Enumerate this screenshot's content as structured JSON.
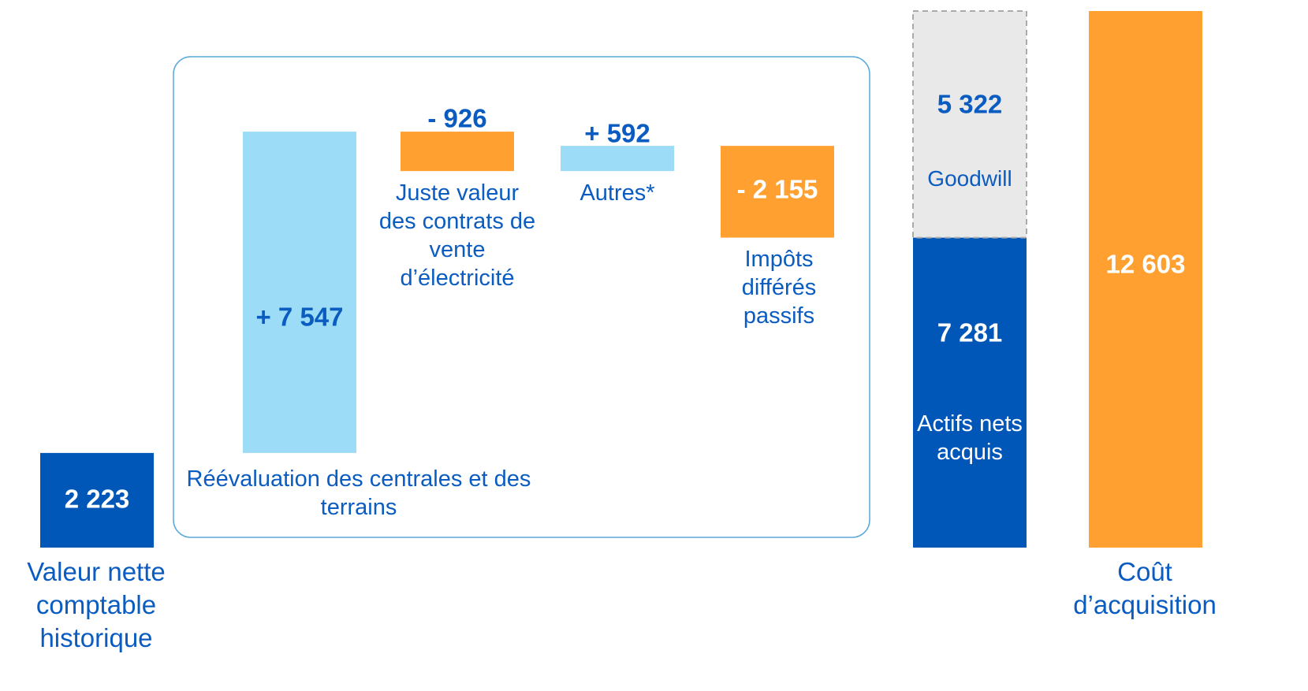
{
  "chart_data": {
    "type": "waterfall",
    "categories": [
      "Valeur nette comptable historique",
      "Réévaluation des centrales et des terrains",
      "Juste valeur des contrats de vente d’électricité",
      "Autres*",
      "Impôts différés passifs",
      "Actifs nets acquis",
      "Goodwill",
      "Coût d’acquisition"
    ],
    "values": [
      2223,
      7547,
      -926,
      592,
      -2155,
      7281,
      5322,
      12603
    ],
    "value_labels": [
      "2 223",
      "+ 7 547",
      "- 926",
      "+ 592",
      "- 2 155",
      "7 281",
      "5 322",
      "12 603"
    ],
    "measure": [
      "absolute",
      "relative",
      "relative",
      "relative",
      "relative",
      "total",
      "relative",
      "total"
    ],
    "colors": [
      "#0057b8",
      "#9ddcf6",
      "#ffa030",
      "#9ddcf6",
      "#ffa030",
      "#0057b8",
      "#e9e9e9",
      "#ffa030"
    ]
  }
}
